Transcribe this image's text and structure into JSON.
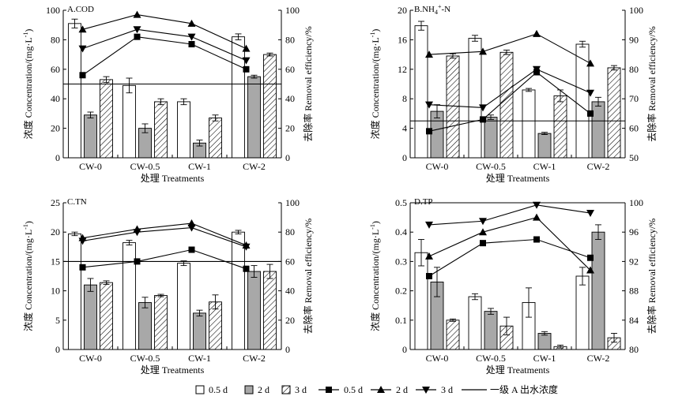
{
  "categories": [
    "CW-0",
    "CW-0.5",
    "CW-1",
    "CW-2"
  ],
  "xlabel": "处理 Treatments",
  "ylabel_left": "浓度 Concentration/(mg·L",
  "ylabel_left_sup": "-1",
  "ylabel_left_end": ")",
  "ylabel_right": "去除率 Removal efficiency/%",
  "legend": {
    "bar_05": "0.5 d",
    "bar_2": "2 d",
    "bar_3": "3 d",
    "line_05": "0.5 d",
    "line_2": "2 d",
    "line_3": "3 d",
    "standard": "一级 A 出水浓度"
  },
  "colors": {
    "bar_2": "#a8a8a8",
    "bar_05": "#ffffff",
    "line": "#000000"
  },
  "chart_data": [
    {
      "title": "A.COD",
      "type": "bar",
      "categories": [
        "CW-0",
        "CW-0.5",
        "CW-1",
        "CW-2"
      ],
      "ylim": [
        0,
        100
      ],
      "yticks": [
        0,
        20,
        40,
        60,
        80,
        100
      ],
      "y2lim": [
        0,
        100
      ],
      "y2ticks": [
        0,
        20,
        40,
        60,
        80,
        100
      ],
      "series": [
        {
          "name": "0.5 d",
          "kind": "bar",
          "values": [
            91,
            49,
            38,
            82
          ],
          "err": [
            3,
            5,
            2,
            2
          ]
        },
        {
          "name": "2 d",
          "kind": "bar",
          "values": [
            29,
            20,
            10,
            55
          ],
          "err": [
            2,
            3,
            2,
            1
          ]
        },
        {
          "name": "3 d",
          "kind": "bar",
          "values": [
            53,
            38,
            27,
            70
          ],
          "err": [
            2,
            2,
            2,
            1
          ]
        },
        {
          "name": "0.5 d",
          "kind": "line",
          "marker": "square",
          "values": [
            56,
            82,
            77,
            60
          ]
        },
        {
          "name": "2 d",
          "kind": "line",
          "marker": "triangle-up",
          "values": [
            87,
            97,
            91,
            74
          ]
        },
        {
          "name": "3 d",
          "kind": "line",
          "marker": "triangle-down",
          "values": [
            74,
            87,
            82,
            66
          ]
        }
      ],
      "standard": 50
    },
    {
      "title": "B.NH",
      "title_sub": "4",
      "title_sup": "+",
      "title_end": "-N",
      "type": "bar",
      "categories": [
        "CW-0",
        "CW-0.5",
        "CW-1",
        "CW-2"
      ],
      "ylim": [
        0,
        20
      ],
      "yticks": [
        0,
        4,
        8,
        12,
        16,
        20
      ],
      "y2lim": [
        50,
        100
      ],
      "y2ticks": [
        50,
        60,
        70,
        80,
        90,
        100
      ],
      "series": [
        {
          "name": "0.5 d",
          "kind": "bar",
          "values": [
            17.9,
            16.2,
            9.2,
            15.4
          ],
          "err": [
            0.6,
            0.4,
            0.2,
            0.4
          ]
        },
        {
          "name": "2 d",
          "kind": "bar",
          "values": [
            6.3,
            5.5,
            3.3,
            7.6
          ],
          "err": [
            0.9,
            0.3,
            0.15,
            0.6
          ]
        },
        {
          "name": "3 d",
          "kind": "bar",
          "values": [
            13.8,
            14.3,
            8.4,
            12.2
          ],
          "err": [
            0.3,
            0.3,
            0.8,
            0.3
          ]
        },
        {
          "name": "0.5 d",
          "kind": "line",
          "marker": "square",
          "values": [
            59,
            63,
            79,
            65
          ]
        },
        {
          "name": "2 d",
          "kind": "line",
          "marker": "triangle-up",
          "values": [
            85,
            86,
            92,
            82
          ]
        },
        {
          "name": "3 d",
          "kind": "line",
          "marker": "triangle-down",
          "values": [
            68,
            67,
            80,
            72
          ]
        }
      ],
      "standard": 5
    },
    {
      "title": "C.TN",
      "type": "bar",
      "categories": [
        "CW-0",
        "CW-0.5",
        "CW-1",
        "CW-2"
      ],
      "ylim": [
        0,
        25
      ],
      "yticks": [
        0,
        5,
        10,
        15,
        20,
        25
      ],
      "y2lim": [
        0,
        100
      ],
      "y2ticks": [
        0,
        20,
        40,
        60,
        80,
        100
      ],
      "series": [
        {
          "name": "0.5 d",
          "kind": "bar",
          "values": [
            19.7,
            18.2,
            14.7,
            20.0
          ],
          "err": [
            0.3,
            0.4,
            0.4,
            0.3
          ]
        },
        {
          "name": "2 d",
          "kind": "bar",
          "values": [
            11.0,
            8.0,
            6.2,
            13.3
          ],
          "err": [
            1.1,
            0.9,
            0.5,
            1.0
          ]
        },
        {
          "name": "3 d",
          "kind": "bar",
          "values": [
            11.4,
            9.2,
            8.1,
            13.3
          ],
          "err": [
            0.3,
            0.2,
            1.2,
            1.2
          ]
        },
        {
          "name": "0.5 d",
          "kind": "line",
          "marker": "square",
          "values": [
            56,
            60,
            68,
            55
          ]
        },
        {
          "name": "2 d",
          "kind": "line",
          "marker": "triangle-up",
          "values": [
            76,
            82,
            86,
            71
          ]
        },
        {
          "name": "3 d",
          "kind": "line",
          "marker": "triangle-down",
          "values": [
            74,
            80,
            83,
            70
          ]
        }
      ],
      "standard": 15
    },
    {
      "title": "D.TP",
      "type": "bar",
      "categories": [
        "CW-0",
        "CW-0.5",
        "CW-1",
        "CW-2"
      ],
      "ylim": [
        0,
        0.5
      ],
      "yticks": [
        0,
        0.1,
        0.2,
        0.3,
        0.4,
        0.5
      ],
      "y2lim": [
        80,
        100
      ],
      "y2ticks": [
        80,
        84,
        88,
        92,
        96,
        100
      ],
      "series": [
        {
          "name": "0.5 d",
          "kind": "bar",
          "values": [
            0.33,
            0.18,
            0.16,
            0.25
          ],
          "err": [
            0.045,
            0.01,
            0.05,
            0.03
          ]
        },
        {
          "name": "2 d",
          "kind": "bar",
          "values": [
            0.23,
            0.13,
            0.055,
            0.4
          ],
          "err": [
            0.05,
            0.01,
            0.006,
            0.025
          ]
        },
        {
          "name": "3 d",
          "kind": "bar",
          "values": [
            0.1,
            0.08,
            0.01,
            0.04
          ],
          "err": [
            0.004,
            0.03,
            0.005,
            0.015
          ]
        },
        {
          "name": "0.5 d",
          "kind": "line",
          "marker": "square",
          "values": [
            90,
            94.5,
            95,
            92.5
          ]
        },
        {
          "name": "2 d",
          "kind": "line",
          "marker": "triangle-up",
          "values": [
            92.7,
            96,
            98,
            90.8
          ]
        },
        {
          "name": "3 d",
          "kind": "line",
          "marker": "triangle-down",
          "values": [
            97,
            97.5,
            99.7,
            98.6
          ]
        }
      ],
      "standard": 0.5
    }
  ]
}
